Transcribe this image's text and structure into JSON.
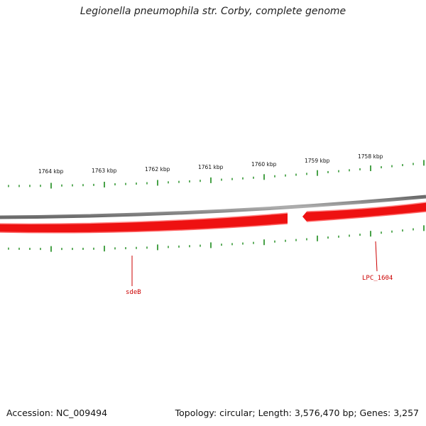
{
  "title": "Legionella pneumophila str. Corby, complete genome",
  "footer": {
    "accession": "Accession: NC_009494",
    "summary": "Topology: circular; Length: 3,576,470 bp; Genes: 3,257"
  },
  "scale_labels": [
    "1764 kbp",
    "1763 kbp",
    "1762 kbp",
    "1761 kbp",
    "1760 kbp",
    "1759 kbp",
    "1758 kbp"
  ],
  "genes": [
    {
      "name": "sdeB",
      "strand": "reverse"
    },
    {
      "name": "LPC_1604",
      "strand": "reverse"
    }
  ],
  "colors": {
    "backbone": "#8a8a8a",
    "gene": "#ee1111",
    "gene_highlight": "#ff9a9a",
    "tick": "#1a8a1a",
    "label": "#cc0000"
  }
}
